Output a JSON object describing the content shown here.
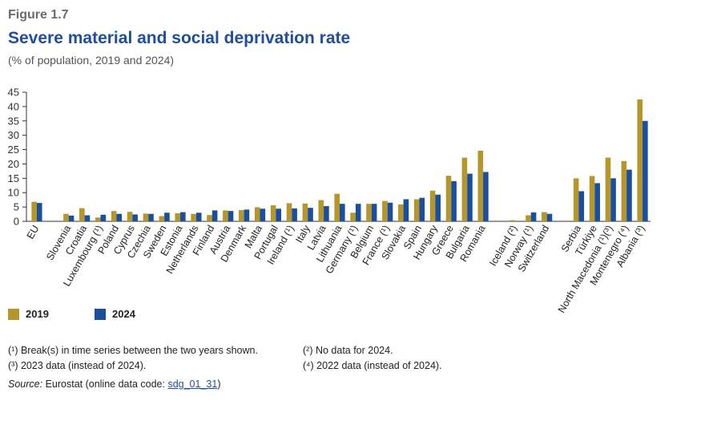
{
  "figure_label": "Figure 1.7",
  "colors": {
    "y2019": "#b5962b",
    "y2024": "#1a4fa0",
    "axis": "#333333",
    "grid": "#bbbbbb"
  },
  "chart_data": {
    "type": "bar",
    "title": "Severe material and social deprivation rate",
    "subtitle": "(% of population, 2019 and 2024)",
    "xlabel": "",
    "ylabel": "",
    "ylim": [
      0,
      45
    ],
    "yticks": [
      0,
      5,
      10,
      15,
      20,
      25,
      30,
      35,
      40,
      45
    ],
    "grid": false,
    "legend": "bottom-left",
    "categories": [
      "EU",
      "",
      "Slovenia",
      "Croatia",
      "Luxembourg (¹)",
      "Poland",
      "Cyprus",
      "Czechia",
      "Sweden",
      "Estonia",
      "Netherlands",
      "Finland",
      "Austria",
      "Denmark",
      "Malta",
      "Portugal",
      "Ireland (¹)",
      "Italy",
      "Latvia",
      "Lithuania",
      "Germany (¹)",
      "Belgium",
      "France (¹)",
      "Slovakia",
      "Spain",
      "Hungary",
      "Greece",
      "Bulgaria",
      "Romania",
      "",
      "Iceland (²)",
      "Norway (¹)",
      "Switzerland",
      "",
      "Serbia",
      "Türkiye",
      "North Macedonia (¹)(³)",
      "Montenegro (⁴)",
      "Albania (³)"
    ],
    "series": [
      {
        "name": "2019",
        "values": [
          6.8,
          null,
          2.6,
          4.6,
          1.3,
          3.6,
          3.3,
          2.7,
          1.8,
          2.8,
          2.6,
          2.2,
          3.8,
          3.9,
          4.9,
          5.6,
          6.3,
          6.2,
          7.4,
          9.6,
          3.0,
          6.1,
          7.1,
          5.9,
          7.7,
          10.7,
          15.9,
          22.2,
          24.6,
          null,
          0.4,
          2.1,
          3.2,
          null,
          15.0,
          15.8,
          22.2,
          21.0,
          42.5
        ]
      },
      {
        "name": "2024",
        "values": [
          6.4,
          null,
          2.0,
          2.1,
          2.3,
          2.6,
          2.4,
          2.6,
          3.0,
          3.2,
          3.0,
          3.8,
          3.6,
          4.1,
          4.4,
          4.4,
          4.5,
          4.7,
          5.3,
          6.1,
          6.1,
          6.1,
          6.5,
          7.7,
          8.2,
          9.3,
          14.0,
          16.6,
          17.2,
          null,
          null,
          3.1,
          2.6,
          null,
          10.5,
          13.3,
          15.0,
          18.0,
          35.0
        ]
      }
    ]
  },
  "legend_items": [
    {
      "label": "2019",
      "color": "#b5962b"
    },
    {
      "label": "2024",
      "color": "#1a4fa0"
    }
  ],
  "notes": {
    "n1": "(¹) Break(s) in time series between the two years shown.",
    "n2": "(²) No data for 2024.",
    "n3": "(³) 2023 data (instead of 2024).",
    "n4": "(⁴) 2022 data (instead of 2024)."
  },
  "source": {
    "prefix": "Source:",
    "text": " Eurostat (online data code: ",
    "code": "sdg_01_31",
    "suffix": ")"
  }
}
